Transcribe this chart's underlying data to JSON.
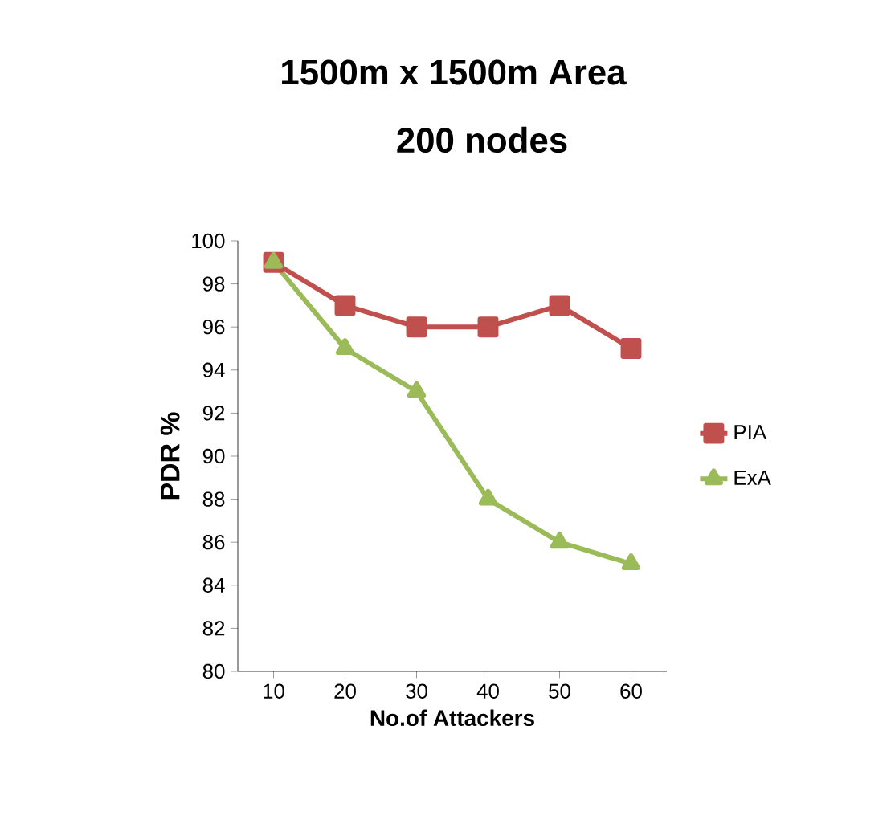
{
  "chart_data": {
    "type": "line",
    "title": "1500m x 1500m Area",
    "subtitle": "200 nodes",
    "xlabel": "No.of Attackers",
    "ylabel": "PDR %",
    "categories": [
      "10",
      "20",
      "30",
      "40",
      "50",
      "60"
    ],
    "series": [
      {
        "name": "PIA",
        "color": "#c0504d",
        "marker": "square",
        "values": [
          99,
          97,
          96,
          96,
          97,
          95
        ]
      },
      {
        "name": "ExA",
        "color": "#9bbb59",
        "marker": "triangle",
        "values": [
          99,
          95,
          93,
          88,
          86,
          85
        ]
      }
    ],
    "ylim": [
      80,
      100
    ],
    "yticks": [
      80,
      82,
      84,
      86,
      88,
      90,
      92,
      94,
      96,
      98,
      100
    ],
    "grid": false,
    "legend": "right"
  }
}
